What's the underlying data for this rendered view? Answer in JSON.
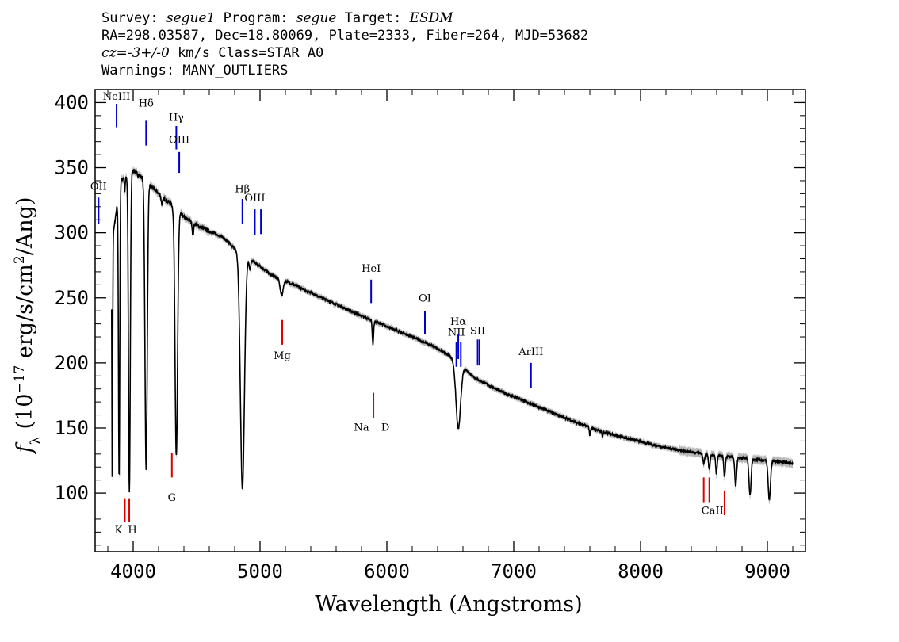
{
  "header": {
    "line1": {
      "survey_label": "Survey: ",
      "survey": "segue1",
      "program_label": " Program: ",
      "program": "segue",
      "target_label": " Target: ",
      "target": "ESDM"
    },
    "line2": "RA=298.03587, Dec=18.80069, Plate=2333, Fiber=264, MJD=53682",
    "line3": {
      "cz": "cz=-3+/-0",
      "rest": " km/s Class=STAR A0"
    },
    "line4": "Warnings: MANY_OUTLIERS"
  },
  "chart_data": {
    "type": "line",
    "xlabel": "Wavelength (Angstroms)",
    "ylabel": "f_λ (10^-17 erg/s/cm^2/Ang)",
    "xlim": [
      3700,
      9300
    ],
    "ylim": [
      55,
      410
    ],
    "x_ticks": [
      4000,
      5000,
      6000,
      7000,
      8000,
      9000
    ],
    "y_ticks": [
      100,
      150,
      200,
      250,
      300,
      350,
      400
    ],
    "continuum": [
      [
        3830,
        290
      ],
      [
        3900,
        340
      ],
      [
        4000,
        348
      ],
      [
        4100,
        340
      ],
      [
        4200,
        330
      ],
      [
        4300,
        322
      ],
      [
        4400,
        312
      ],
      [
        4500,
        306
      ],
      [
        4600,
        301
      ],
      [
        4700,
        297
      ],
      [
        4800,
        288
      ],
      [
        4900,
        281
      ],
      [
        5000,
        274
      ],
      [
        5100,
        267
      ],
      [
        5200,
        263
      ],
      [
        5400,
        254
      ],
      [
        5600,
        245
      ],
      [
        5800,
        236
      ],
      [
        6000,
        228
      ],
      [
        6200,
        220
      ],
      [
        6400,
        211
      ],
      [
        6500,
        205
      ],
      [
        6700,
        188
      ],
      [
        6900,
        178
      ],
      [
        7100,
        170
      ],
      [
        7300,
        162
      ],
      [
        7500,
        154
      ],
      [
        7700,
        147
      ],
      [
        7900,
        142
      ],
      [
        8100,
        137
      ],
      [
        8300,
        133
      ],
      [
        8500,
        130
      ],
      [
        8700,
        128
      ],
      [
        8900,
        126
      ],
      [
        9000,
        125
      ],
      [
        9200,
        123
      ]
    ],
    "absorption": [
      [
        3835,
        190,
        3
      ],
      [
        3889,
        222,
        5
      ],
      [
        3970,
        245,
        7
      ],
      [
        4102,
        222,
        9
      ],
      [
        4340,
        190,
        10
      ],
      [
        4861,
        180,
        16
      ],
      [
        3934,
        12,
        3
      ],
      [
        4227,
        6,
        6
      ],
      [
        4471,
        10,
        5
      ],
      [
        4920,
        8,
        6
      ],
      [
        5170,
        12,
        12
      ],
      [
        5890,
        18,
        5
      ],
      [
        6563,
        50,
        18
      ],
      [
        7600,
        6,
        4
      ],
      [
        7700,
        4,
        3
      ],
      [
        8498,
        8,
        6
      ],
      [
        8542,
        12,
        6
      ],
      [
        8598,
        14,
        6
      ],
      [
        8662,
        16,
        6
      ],
      [
        8750,
        22,
        7
      ],
      [
        8863,
        28,
        8
      ],
      [
        9015,
        30,
        9
      ]
    ],
    "emission_lines": [
      {
        "label": "NeIII",
        "x": 3869,
        "y1": 381,
        "y2": 399,
        "label_y": 402
      },
      {
        "label": "Hδ",
        "x": 4102,
        "y1": 367,
        "y2": 386,
        "label_y": 397
      },
      {
        "label": "Hγ",
        "x": 4340,
        "y1": 364,
        "y2": 382,
        "label_y": 386
      },
      {
        "label": "OIII",
        "x": 4363,
        "y1": 346,
        "y2": 362,
        "label_y": 369
      },
      {
        "label": "OII",
        "x": 3727,
        "y1": 307,
        "y2": 327,
        "label_y": 333
      },
      {
        "label": "Hβ",
        "x": 4861,
        "y1": 307,
        "y2": 326,
        "label_y": 331
      },
      {
        "label": "OIII",
        "x": 4959,
        "y1": 298,
        "y2": 318,
        "label_y": 324
      },
      {
        "label": "OIII",
        "x": 5007,
        "y1": 299,
        "y2": 318,
        "label_y": 324
      },
      {
        "label": "HeI",
        "x": 5876,
        "y1": 246,
        "y2": 264,
        "label_y": 270
      },
      {
        "label": "OI",
        "x": 6300,
        "y1": 222,
        "y2": 240,
        "label_y": 247
      },
      {
        "label": "NII",
        "x": 6548,
        "y1": 197,
        "y2": 216,
        "label_y": 221
      },
      {
        "label": "Hα",
        "x": 6563,
        "y1": 203,
        "y2": 222,
        "label_y": 229
      },
      {
        "label": "NII",
        "x": 6583,
        "y1": 197,
        "y2": 216,
        "label_y": 219
      },
      {
        "label": "SII",
        "x": 6716,
        "y1": 198,
        "y2": 218,
        "label_y": 222
      },
      {
        "label": "SII",
        "x": 6731,
        "y1": 198,
        "y2": 218,
        "label_y": 222
      },
      {
        "label": "ArIII",
        "x": 7136,
        "y1": 181,
        "y2": 200,
        "label_y": 206
      }
    ],
    "absorption_markers": [
      {
        "label": "K",
        "x": 3934,
        "y1": 78,
        "y2": 96,
        "label_y": 69
      },
      {
        "label": "H",
        "x": 3969,
        "y1": 78,
        "y2": 96,
        "label_y": 69
      },
      {
        "label": "G",
        "x": 4305,
        "y1": 112,
        "y2": 131,
        "label_y": 94
      },
      {
        "label": "Mg",
        "x": 5175,
        "y1": 214,
        "y2": 233,
        "label_y": 203
      },
      {
        "label": "Na",
        "x": 5894,
        "y1": 158,
        "y2": 177,
        "label_y": 148
      },
      {
        "label": "D",
        "x": 5894,
        "y1": 158,
        "y2": 177,
        "label_y": 148
      },
      {
        "label": "CaII",
        "x": 8498,
        "y1": 93,
        "y2": 112,
        "label_y": 84
      },
      {
        "label": "CaII",
        "x": 8542,
        "y1": 93,
        "y2": 112,
        "label_y": 84
      },
      {
        "label": "CaII",
        "x": 8662,
        "y1": 83,
        "y2": 102,
        "label_y": 84
      }
    ],
    "colors": {
      "spectrum": "#000000",
      "error_band": "#b8b8b8",
      "emission": "#0000cc",
      "absorption": "#dd0000"
    }
  }
}
